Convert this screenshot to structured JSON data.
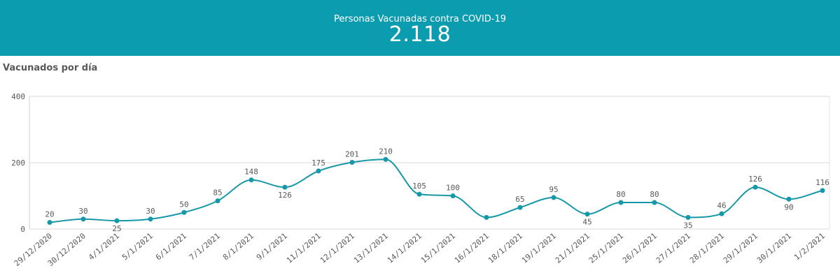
{
  "banner": {
    "label": "Personas Vacunadas contra COVID-19",
    "value": "2.118",
    "color": "#0c9caf"
  },
  "chart_data": {
    "type": "line",
    "title": "Vacunados por día",
    "xlabel": "",
    "ylabel": "",
    "ylim": [
      0,
      400
    ],
    "yticks": [
      0,
      200,
      400
    ],
    "grid": true,
    "line_color": "#1798a8",
    "categories": [
      "29/12/2020",
      "30/12/2020",
      "4/1/2021",
      "5/1/2021",
      "6/1/2021",
      "7/1/2021",
      "8/1/2021",
      "9/1/2021",
      "11/1/2021",
      "12/1/2021",
      "13/1/2021",
      "14/1/2021",
      "15/1/2021",
      "16/1/2021",
      "18/1/2021",
      "19/1/2021",
      "21/1/2021",
      "25/1/2021",
      "26/1/2021",
      "27/1/2021",
      "28/1/2021",
      "29/1/2021",
      "30/1/2021",
      "1/2/2021"
    ],
    "values": [
      20,
      30,
      25,
      30,
      50,
      85,
      148,
      126,
      175,
      201,
      210,
      105,
      100,
      35,
      65,
      95,
      45,
      80,
      80,
      35,
      46,
      126,
      90,
      116
    ],
    "labels": [
      "20",
      "30",
      "25",
      "30",
      "50",
      "85",
      "148",
      "126",
      "175",
      "201",
      "210",
      "105",
      "100",
      "",
      "65",
      "95",
      "45",
      "80",
      "80",
      "35",
      "46",
      "126",
      "90",
      "116"
    ]
  }
}
